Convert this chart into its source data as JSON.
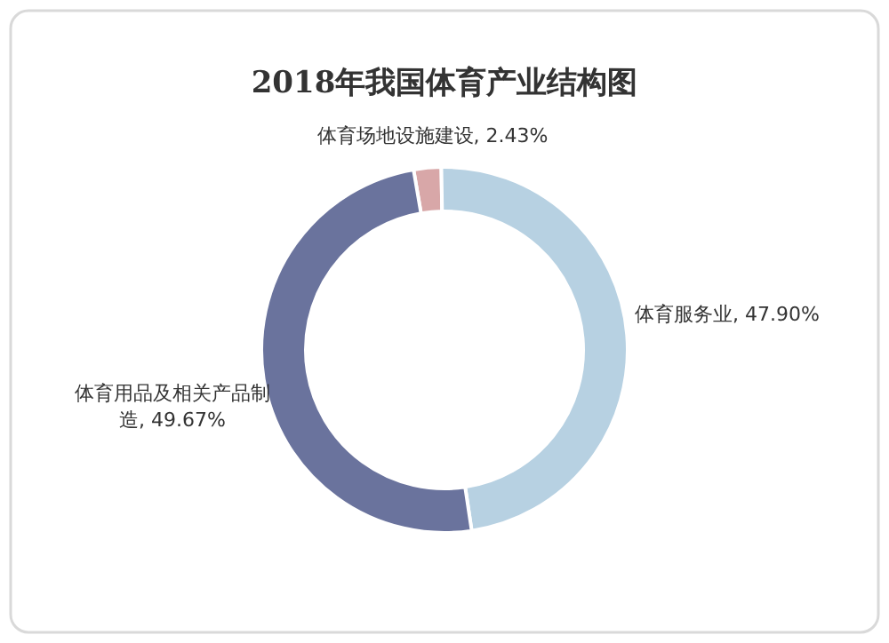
{
  "chart_data": {
    "type": "donut",
    "title": "2018年我国体育产业结构图",
    "categories": [
      "体育场地设施建设",
      "体育服务业",
      "体育用品及相关产品制造"
    ],
    "values": [
      2.43,
      47.9,
      49.67
    ],
    "colors": [
      "#d8a7a8",
      "#b7d1e2",
      "#6a739d"
    ],
    "value_labels": [
      "2.43%",
      "47.90%",
      "49.67%"
    ]
  }
}
